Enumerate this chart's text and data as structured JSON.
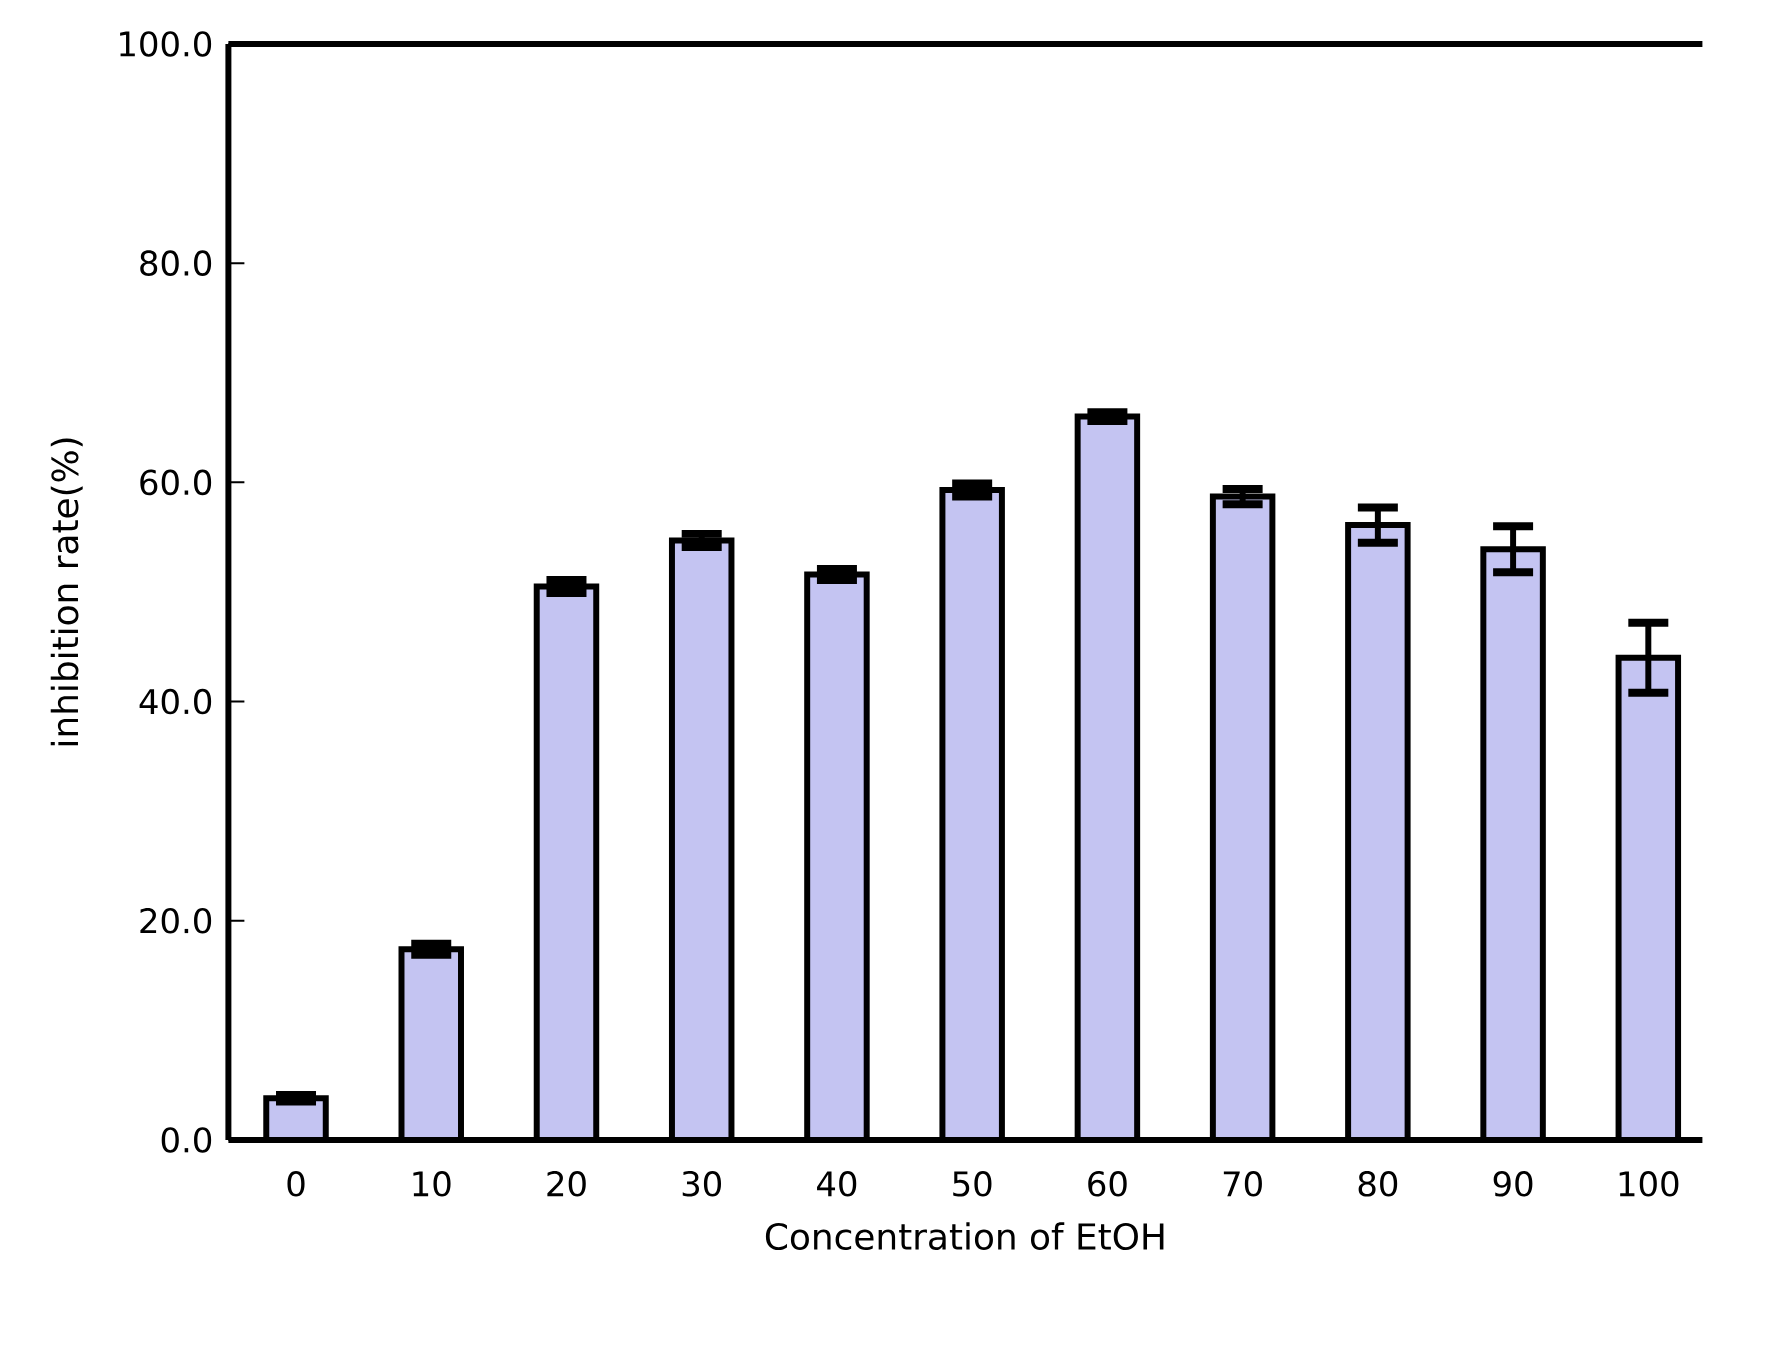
{
  "chart_data": {
    "type": "bar",
    "xlabel": "Concentration of EtOH",
    "ylabel": "inhibition rate(%)",
    "categories": [
      "0",
      "10",
      "20",
      "30",
      "40",
      "50",
      "60",
      "70",
      "80",
      "90",
      "100"
    ],
    "values": [
      3.8,
      17.4,
      50.5,
      54.7,
      51.6,
      59.3,
      66.0,
      58.7,
      56.1,
      53.9,
      44.0
    ],
    "errors": [
      0.3,
      0.5,
      0.6,
      0.6,
      0.5,
      0.6,
      0.4,
      0.7,
      1.6,
      2.1,
      3.2
    ],
    "color": "#c4c4f2",
    "ylim": [
      0,
      100
    ],
    "yticks": [
      {
        "value": 0,
        "label": "0.0"
      },
      {
        "value": 20,
        "label": "20.0"
      },
      {
        "value": 40,
        "label": "40.0"
      },
      {
        "value": 60,
        "label": "60.0"
      },
      {
        "value": 80,
        "label": "80.0"
      },
      {
        "value": 100,
        "label": "100.0"
      }
    ],
    "grid": false
  }
}
